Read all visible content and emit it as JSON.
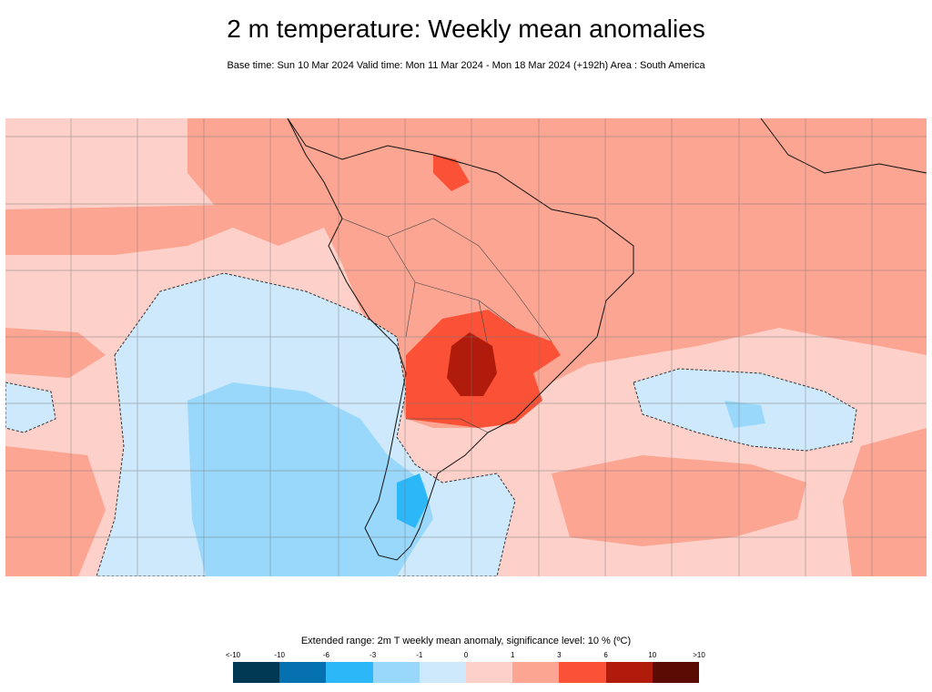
{
  "title": "2 m temperature: Weekly mean anomalies",
  "subtitle": "Base time: Sun 10 Mar 2024 Valid time: Mon 11 Mar 2024 - Mon 18 Mar 2024 (+192h) Area : South America",
  "legend": {
    "title": "Extended range: 2m T weekly mean anomaly, significance level: 10 % (ºC)",
    "ticks": [
      "<-10",
      "-10",
      "-6",
      "-3",
      "-1",
      "0",
      "1",
      "3",
      "6",
      "10",
      ">10"
    ],
    "colors": [
      "#003752",
      "#0571b0",
      "#2cb8f8",
      "#99d8fb",
      "#cde9fb",
      "#fdd0c9",
      "#fca592",
      "#fb5136",
      "#b01b0b",
      "#5a0b04"
    ]
  },
  "map": {
    "area": "South America",
    "colors": {
      "light_pink": "#fdd0c9",
      "salmon": "#fca592",
      "red": "#fb5136",
      "dark_red": "#b01b0b",
      "light_blue": "#cde9fb",
      "blue": "#99d8fb",
      "mid_blue": "#2cb8f8"
    }
  }
}
